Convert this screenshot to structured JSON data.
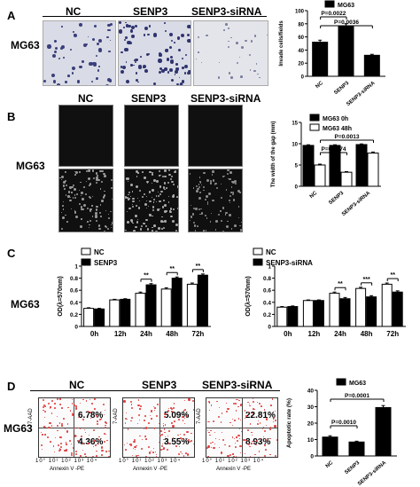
{
  "panels": {
    "A": {
      "letter": "A",
      "row_label": "MG63",
      "headers": [
        "NC",
        "SENP3",
        "SENP3-siRNA"
      ]
    },
    "B": {
      "letter": "B",
      "row_label": "MG63",
      "headers": [
        "NC",
        "SENP3",
        "SENP3-siRNA"
      ]
    },
    "C": {
      "letter": "C",
      "row_label": "MG63"
    },
    "D": {
      "letter": "D",
      "row_label": "MG63",
      "headers": [
        "NC",
        "SENP3",
        "SENP3-siRNA"
      ],
      "axis_y": "7-AAD",
      "axis_x": "Annexin V -PE",
      "plots": [
        {
          "upper_right": "6.78%",
          "lower_right": "4.36%"
        },
        {
          "upper_right": "5.09%",
          "lower_right": "3.55%"
        },
        {
          "upper_right": "22.81%",
          "lower_right": "8.93%"
        }
      ],
      "tick_labels": [
        "10°",
        "10¹",
        "10²",
        "10³",
        "10⁴"
      ]
    }
  },
  "chart_data": [
    {
      "id": "A",
      "type": "bar",
      "legend": [
        "MG63"
      ],
      "categories": [
        "NC",
        "SENP3",
        "SENP3-siRNA"
      ],
      "series": [
        {
          "name": "MG63",
          "values": [
            52,
            77,
            32
          ],
          "errors": [
            3,
            3,
            1.5
          ]
        }
      ],
      "ylabel": "Invade cells/fields",
      "ylim": [
        0,
        100
      ],
      "yticks": [
        0,
        20,
        40,
        60,
        80,
        100
      ],
      "annotations": [
        "P=0.0022",
        "P=0.0036"
      ],
      "colors": [
        "#000000"
      ]
    },
    {
      "id": "B",
      "type": "bar",
      "legend": [
        "MG63  0h",
        "MG63  48h"
      ],
      "categories": [
        "NC",
        "SENP3",
        "SENP3-siRNA"
      ],
      "series": [
        {
          "name": "MG63  0h",
          "values": [
            9.6,
            9.6,
            9.8
          ],
          "errors": [
            0.15,
            0.15,
            0.15
          ]
        },
        {
          "name": "MG63  48h",
          "values": [
            5.0,
            3.3,
            7.8
          ],
          "errors": [
            0.2,
            0.15,
            0.25
          ]
        }
      ],
      "ylabel": "The width of the gap (mm)",
      "ylim": [
        0,
        15
      ],
      "yticks": [
        0,
        5,
        10,
        15
      ],
      "annotations": [
        "P=0.0013",
        "P=0.0074"
      ],
      "colors": [
        "#000000",
        "#ffffff"
      ]
    },
    {
      "id": "C1",
      "type": "bar",
      "legend": [
        "NC",
        "SENP3"
      ],
      "categories": [
        "0h",
        "12h",
        "24h",
        "48h",
        "72h"
      ],
      "series": [
        {
          "name": "NC",
          "values": [
            0.3,
            0.44,
            0.55,
            0.62,
            0.7
          ],
          "errors": [
            0.01,
            0.01,
            0.02,
            0.02,
            0.02
          ]
        },
        {
          "name": "SENP3",
          "values": [
            0.29,
            0.45,
            0.69,
            0.8,
            0.85
          ],
          "errors": [
            0.01,
            0.01,
            0.02,
            0.02,
            0.02
          ]
        }
      ],
      "ylabel": "OD(λ=570nm)",
      "ylim": [
        0,
        1.0
      ],
      "yticks": [
        0,
        0.2,
        0.4,
        0.6,
        0.8,
        1.0
      ],
      "annotations": [
        "**",
        "**",
        "**"
      ],
      "colors": [
        "#ffffff",
        "#000000"
      ]
    },
    {
      "id": "C2",
      "type": "bar",
      "legend": [
        "NC",
        "SENP3-siRNA"
      ],
      "categories": [
        "0h",
        "12h",
        "24h",
        "48h",
        "72h"
      ],
      "series": [
        {
          "name": "NC",
          "values": [
            0.32,
            0.43,
            0.55,
            0.63,
            0.7
          ],
          "errors": [
            0.01,
            0.01,
            0.02,
            0.02,
            0.02
          ]
        },
        {
          "name": "SENP3-siRNA",
          "values": [
            0.33,
            0.43,
            0.46,
            0.49,
            0.57
          ],
          "errors": [
            0.01,
            0.01,
            0.02,
            0.02,
            0.02
          ]
        }
      ],
      "ylabel": "OD(λ=570nm)",
      "ylim": [
        0,
        1.0
      ],
      "yticks": [
        0,
        0.2,
        0.4,
        0.6,
        0.8,
        1.0
      ],
      "annotations": [
        "**",
        "***",
        "**"
      ],
      "colors": [
        "#ffffff",
        "#000000"
      ]
    },
    {
      "id": "D",
      "type": "bar",
      "legend": [
        "MG63"
      ],
      "categories": [
        "NC",
        "SENP3",
        "SENP3-siRNA"
      ],
      "series": [
        {
          "name": "MG63",
          "values": [
            11.5,
            8.5,
            29.5
          ],
          "errors": [
            0.8,
            0.5,
            1.2
          ]
        }
      ],
      "ylabel": "Apoptotic rate (%)",
      "ylim": [
        0,
        40
      ],
      "yticks": [
        0,
        10,
        20,
        30,
        40
      ],
      "annotations": [
        "P=0.0001",
        "P=0.0010"
      ],
      "colors": [
        "#000000"
      ]
    }
  ]
}
